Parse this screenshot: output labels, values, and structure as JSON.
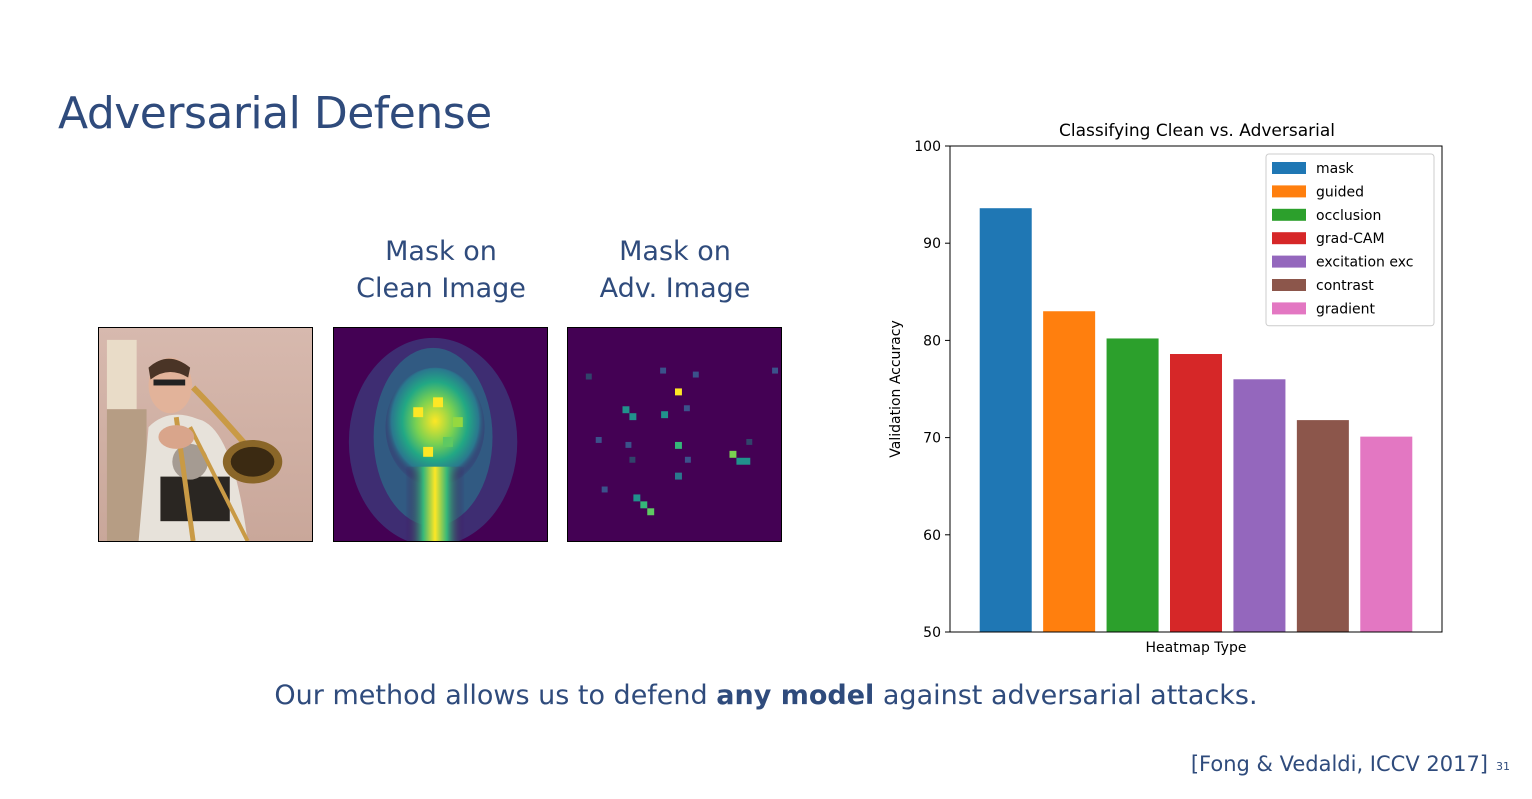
{
  "slide": {
    "title": "Adversarial Defense",
    "captions": {
      "clean": [
        "Mask on",
        "Clean Image"
      ],
      "adv": [
        "Mask on",
        "Adv. Image"
      ]
    },
    "bottom_text": {
      "before": "Our method allows us to defend ",
      "bold": "any model",
      "after": " against adversarial attacks."
    },
    "citation": "[Fong & Vedaldi, ICCV 2017]",
    "page_number": "31"
  },
  "chart_data": {
    "type": "bar",
    "title": "Classifying Clean vs. Adversarial",
    "xlabel": "Heatmap Type",
    "ylabel": "Validation Accuracy",
    "ylim": [
      50,
      100
    ],
    "yticks": [
      50,
      60,
      70,
      80,
      90,
      100
    ],
    "legend_position": "top-right",
    "series": [
      {
        "name": "mask",
        "value": 93.6,
        "color": "#1f77b4"
      },
      {
        "name": "guided",
        "value": 83.0,
        "color": "#ff7f0e"
      },
      {
        "name": "occlusion",
        "value": 80.2,
        "color": "#2ca02c"
      },
      {
        "name": "grad-CAM",
        "value": 78.6,
        "color": "#d62728"
      },
      {
        "name": "excitation exc",
        "value": 76.0,
        "color": "#9467bd"
      },
      {
        "name": "contrast",
        "value": 71.8,
        "color": "#8c564b"
      },
      {
        "name": "gradient",
        "value": 70.1,
        "color": "#e377c2"
      }
    ]
  }
}
